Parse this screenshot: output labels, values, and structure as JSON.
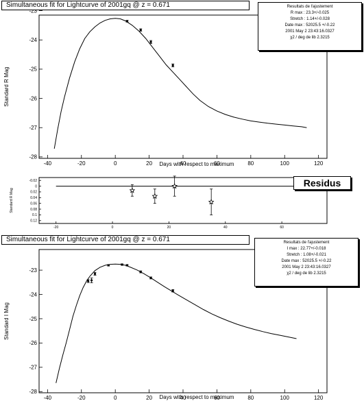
{
  "chart_data": [
    {
      "type": "line",
      "title": "Simultaneous fit for Lightcurve of 2001gq @ z = 0.671",
      "xlabel": "Days with respect to maximum",
      "ylabel": "Standard R Mag",
      "xlim": [
        -45,
        125
      ],
      "ylim": [
        -23.15,
        -28.05
      ],
      "y_reversed": true,
      "xticks": [
        -40,
        -20,
        0,
        20,
        40,
        60,
        80,
        100,
        120
      ],
      "yticks": [
        -23,
        -24,
        -25,
        -26,
        -27,
        -28
      ],
      "fit_curve": {
        "x": [
          -36,
          -34,
          -32,
          -30,
          -27,
          -24,
          -21,
          -18,
          -15,
          -12,
          -9,
          -6,
          -3,
          0,
          3,
          6,
          10,
          14,
          18,
          22,
          26,
          30,
          34,
          38,
          42,
          46,
          50,
          55,
          60,
          65,
          70,
          75,
          80,
          85,
          90,
          95,
          100,
          105,
          110,
          113
        ],
        "y": [
          -27.72,
          -27.05,
          -26.45,
          -25.95,
          -25.3,
          -24.75,
          -24.3,
          -23.95,
          -23.72,
          -23.55,
          -23.42,
          -23.33,
          -23.28,
          -23.26,
          -23.28,
          -23.35,
          -23.5,
          -23.7,
          -23.95,
          -24.25,
          -24.55,
          -24.85,
          -25.1,
          -25.35,
          -25.6,
          -25.85,
          -26.07,
          -26.28,
          -26.43,
          -26.55,
          -26.64,
          -26.71,
          -26.77,
          -26.81,
          -26.85,
          -26.88,
          -26.91,
          -26.94,
          -26.97,
          -27.0
        ]
      },
      "points": [
        {
          "x": 7,
          "y": -23.36,
          "err": 0.03
        },
        {
          "x": 15,
          "y": -23.66,
          "err": 0.04
        },
        {
          "x": 21,
          "y": -24.07,
          "err": 0.05
        },
        {
          "x": 34,
          "y": -24.87,
          "err": 0.05
        }
      ],
      "stats_box": {
        "title": "Resultats de l'ajustement",
        "lines": [
          "R max : 23.3+/-0.025",
          "Stretch : 1.14+/-0.028",
          "Date max : 52025.5 +/-0.22",
          "2001 May 2 23:43:16.0327",
          "χ2 / deg de lib 2.3215"
        ]
      }
    },
    {
      "type": "scatter",
      "title": "Residus",
      "ylabel": "Standard R Mag",
      "xlim": [
        -26,
        76
      ],
      "ylim": [
        -0.03,
        0.13
      ],
      "xticks": [
        -20,
        0,
        20,
        40,
        60
      ],
      "yticks": [
        -0.02,
        0,
        0.02,
        0.04,
        0.06,
        0.08,
        0.1,
        0.12
      ],
      "zero_line": {
        "x": [
          -20,
          68
        ],
        "y": 0
      },
      "points": [
        {
          "x": 7,
          "y": 0.015,
          "err": 0.02
        },
        {
          "x": 15,
          "y": 0.035,
          "err": 0.025
        },
        {
          "x": 22,
          "y": 0,
          "err": 0.035
        },
        {
          "x": 35,
          "y": 0.055,
          "err": 0.045
        }
      ]
    },
    {
      "type": "line",
      "title": "Simultaneous fit for Lightcurve of 2001gq @ z = 0.671",
      "xlabel": "Days with respect to maximum",
      "ylabel": "Standard I Mag",
      "xlim": [
        -45,
        125
      ],
      "ylim": [
        -22.15,
        -28.05
      ],
      "y_reversed": true,
      "xticks": [
        -40,
        -20,
        0,
        20,
        40,
        60,
        80,
        100,
        120
      ],
      "yticks": [
        -23,
        -24,
        -25,
        -26,
        -27,
        -28
      ],
      "fit_curve": {
        "x": [
          -35,
          -33,
          -31,
          -29,
          -27,
          -25,
          -23,
          -21,
          -19,
          -17,
          -15,
          -12,
          -9,
          -6,
          -3,
          0,
          3,
          6,
          9,
          13,
          17,
          21,
          25,
          29,
          33,
          37,
          42,
          47,
          52,
          57,
          62,
          67,
          72,
          77,
          82,
          87,
          92,
          97,
          102,
          107
        ],
        "y": [
          -27.65,
          -27.05,
          -26.5,
          -26.0,
          -25.45,
          -24.9,
          -24.45,
          -24.05,
          -23.72,
          -23.45,
          -23.25,
          -23.02,
          -22.88,
          -22.8,
          -22.76,
          -22.75,
          -22.76,
          -22.8,
          -22.88,
          -23.0,
          -23.15,
          -23.32,
          -23.5,
          -23.68,
          -23.85,
          -24.02,
          -24.22,
          -24.42,
          -24.62,
          -24.8,
          -24.96,
          -25.1,
          -25.23,
          -25.34,
          -25.44,
          -25.53,
          -25.61,
          -25.68,
          -25.75,
          -25.82
        ]
      },
      "points": [
        {
          "x": -16,
          "y": -23.45,
          "err": 0.06
        },
        {
          "x": -14,
          "y": -23.42,
          "err": 0.1
        },
        {
          "x": -12,
          "y": -23.15,
          "err": 0.06
        },
        {
          "x": -4,
          "y": -22.8,
          "err": 0.03
        },
        {
          "x": 4,
          "y": -22.77,
          "err": 0.03
        },
        {
          "x": 7,
          "y": -22.8,
          "err": 0.03
        },
        {
          "x": 15,
          "y": -23.07,
          "err": 0.04
        },
        {
          "x": 21,
          "y": -23.32,
          "err": 0.04
        },
        {
          "x": 34,
          "y": -23.85,
          "err": 0.05
        }
      ],
      "stats_box": {
        "title": "Resultats de l'ajustement",
        "lines": [
          "I max : 22.77+/-0.018",
          "Stretch : 1.08+/-0.021",
          "Date max : 52025.5 +/-0.22",
          "2001 May 2 23:43:16.0327",
          "χ2 / deg de lib 2.3215"
        ]
      }
    }
  ]
}
